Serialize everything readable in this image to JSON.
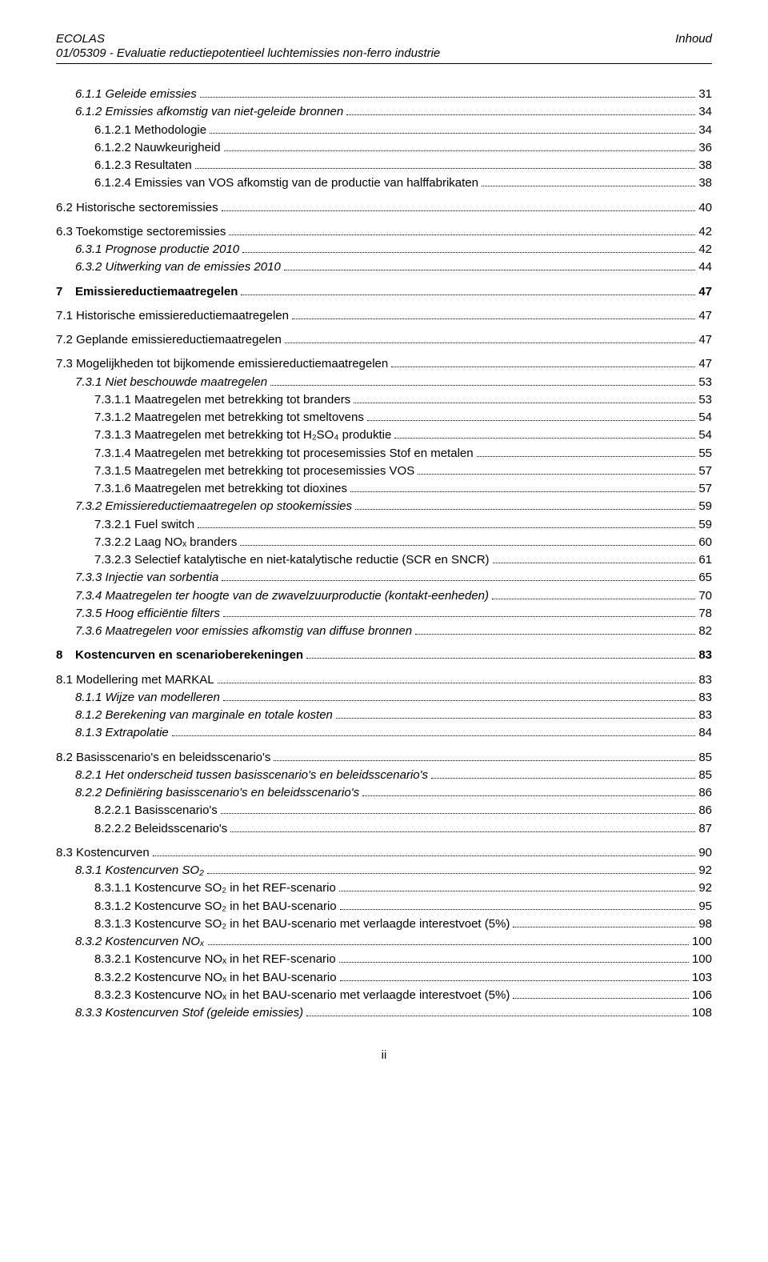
{
  "header": {
    "left_top": "ECOLAS",
    "right_top": "Inhoud",
    "left_sub": "01/05309 - Evaluatie reductiepotentieel luchtemissies non-ferro industrie"
  },
  "footer": {
    "page_label": "ii"
  },
  "toc": [
    {
      "label": "6.1.1  Geleide emissies",
      "page": "31",
      "indent": 1,
      "italic": true,
      "gapBefore": false
    },
    {
      "label": "6.1.2  Emissies afkomstig van niet-geleide bronnen",
      "page": "34",
      "indent": 1,
      "italic": true
    },
    {
      "label": "6.1.2.1  Methodologie",
      "page": "34",
      "indent": 2
    },
    {
      "label": "6.1.2.2  Nauwkeurigheid",
      "page": "36",
      "indent": 2
    },
    {
      "label": "6.1.2.3  Resultaten",
      "page": "38",
      "indent": 2
    },
    {
      "label": "6.1.2.4  Emissies van VOS afkomstig van de productie van halffabrikaten",
      "page": "38",
      "indent": 2
    },
    {
      "label": "6.2  Historische sectoremissies",
      "page": "40",
      "indent": 0,
      "gapBefore": true
    },
    {
      "label": "6.3  Toekomstige sectoremissies",
      "page": "42",
      "indent": 0,
      "gapBefore": true
    },
    {
      "label": "6.3.1  Prognose productie 2010",
      "page": "42",
      "indent": 1,
      "italic": true
    },
    {
      "label": "6.3.2  Uitwerking van de emissies 2010",
      "page": "44",
      "indent": 1,
      "italic": true
    },
    {
      "chapter": true,
      "num": "7",
      "title": "Emissiereductiemaatregelen",
      "page": "47",
      "gapBefore": true
    },
    {
      "label": "7.1  Historische emissiereductiemaatregelen",
      "page": "47",
      "indent": 0,
      "gapBefore": true
    },
    {
      "label": "7.2  Geplande emissiereductiemaatregelen",
      "page": "47",
      "indent": 0,
      "gapBefore": true
    },
    {
      "label": "7.3  Mogelijkheden tot bijkomende emissiereductiemaatregelen",
      "page": "47",
      "indent": 0,
      "gapBefore": true
    },
    {
      "label": "7.3.1  Niet beschouwde maatregelen",
      "page": "53",
      "indent": 1,
      "italic": true
    },
    {
      "label": "7.3.1.1  Maatregelen met betrekking tot branders",
      "page": "53",
      "indent": 2
    },
    {
      "label": "7.3.1.2  Maatregelen met betrekking tot smeltovens",
      "page": "54",
      "indent": 2
    },
    {
      "label": "7.3.1.3  Maatregelen met betrekking tot H₂SO₄ produktie",
      "page": "54",
      "indent": 2
    },
    {
      "label": "7.3.1.4  Maatregelen met betrekking tot procesemissies Stof en metalen",
      "page": "55",
      "indent": 2
    },
    {
      "label": "7.3.1.5  Maatregelen met betrekking tot procesemissies VOS",
      "page": "57",
      "indent": 2
    },
    {
      "label": "7.3.1.6  Maatregelen met betrekking tot dioxines",
      "page": "57",
      "indent": 2
    },
    {
      "label": "7.3.2  Emissiereductiemaatregelen op stookemissies",
      "page": "59",
      "indent": 1,
      "italic": true
    },
    {
      "label": "7.3.2.1  Fuel switch",
      "page": "59",
      "indent": 2
    },
    {
      "label": "7.3.2.2  Laag NOₓ branders",
      "page": "60",
      "indent": 2
    },
    {
      "label": "7.3.2.3  Selectief katalytische en niet-katalytische reductie (SCR en SNCR)",
      "page": "61",
      "indent": 2
    },
    {
      "label": "7.3.3  Injectie van sorbentia",
      "page": "65",
      "indent": 1,
      "italic": true
    },
    {
      "label": "7.3.4  Maatregelen ter hoogte van de zwavelzuurproductie (kontakt-eenheden)",
      "page": "70",
      "indent": 1,
      "italic": true
    },
    {
      "label": "7.3.5  Hoog efficiëntie filters",
      "page": "78",
      "indent": 1,
      "italic": true
    },
    {
      "label": "7.3.6  Maatregelen voor emissies afkomstig van diffuse bronnen",
      "page": "82",
      "indent": 1,
      "italic": true
    },
    {
      "chapter": true,
      "num": "8",
      "title": "Kostencurven en scenarioberekeningen",
      "page": "83",
      "gapBefore": true
    },
    {
      "label": "8.1  Modellering met MARKAL",
      "page": "83",
      "indent": 0,
      "gapBefore": true
    },
    {
      "label": "8.1.1  Wijze van modelleren",
      "page": "83",
      "indent": 1,
      "italic": true
    },
    {
      "label": "8.1.2  Berekening van marginale en totale kosten",
      "page": "83",
      "indent": 1,
      "italic": true
    },
    {
      "label": "8.1.3  Extrapolatie",
      "page": "84",
      "indent": 1,
      "italic": true
    },
    {
      "label": "8.2  Basisscenario's en beleidsscenario's",
      "page": "85",
      "indent": 0,
      "gapBefore": true
    },
    {
      "label": "8.2.1  Het onderscheid tussen basisscenario's en beleidsscenario's",
      "page": "85",
      "indent": 1,
      "italic": true
    },
    {
      "label": "8.2.2  Definiëring basisscenario's en beleidsscenario's",
      "page": "86",
      "indent": 1,
      "italic": true
    },
    {
      "label": "8.2.2.1  Basisscenario's",
      "page": "86",
      "indent": 2
    },
    {
      "label": "8.2.2.2  Beleidsscenario's",
      "page": "87",
      "indent": 2
    },
    {
      "label": "8.3  Kostencurven",
      "page": "90",
      "indent": 0,
      "gapBefore": true
    },
    {
      "label": "8.3.1  Kostencurven SO₂",
      "page": "92",
      "indent": 1,
      "italic": true
    },
    {
      "label": "8.3.1.1  Kostencurve SO₂ in het REF-scenario",
      "page": "92",
      "indent": 2
    },
    {
      "label": "8.3.1.2  Kostencurve SO₂ in het BAU-scenario",
      "page": "95",
      "indent": 2
    },
    {
      "label": "8.3.1.3  Kostencurve SO₂ in het BAU-scenario met verlaagde interestvoet (5%)",
      "page": "98",
      "indent": 2
    },
    {
      "label": "8.3.2  Kostencurven NOₓ",
      "page": "100",
      "indent": 1,
      "italic": true
    },
    {
      "label": "8.3.2.1  Kostencurve NOₓ in het REF-scenario",
      "page": "100",
      "indent": 2
    },
    {
      "label": "8.3.2.2  Kostencurve NOₓ in het BAU-scenario",
      "page": "103",
      "indent": 2
    },
    {
      "label": "8.3.2.3  Kostencurve NOₓ in het BAU-scenario met verlaagde interestvoet (5%)",
      "page": "106",
      "indent": 2
    },
    {
      "label": "8.3.3  Kostencurven Stof (geleide emissies)",
      "page": "108",
      "indent": 1,
      "italic": true
    }
  ]
}
